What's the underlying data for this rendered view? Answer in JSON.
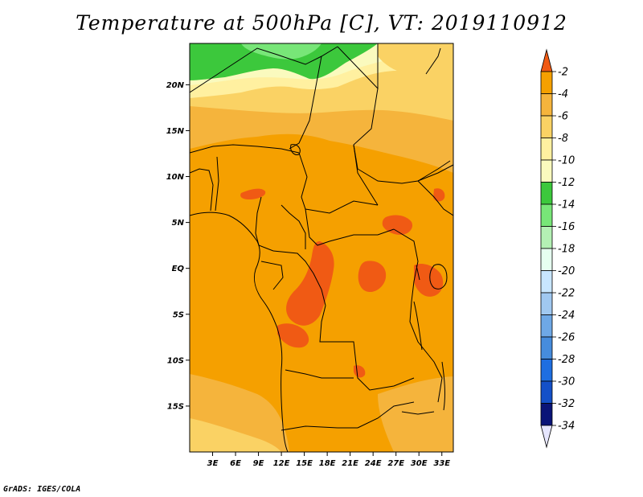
{
  "title": "Temperature at 500hPa [C], VT: 2019110912",
  "credit": "GrADS: IGES/COLA",
  "map": {
    "lon_range": [
      0,
      34.5
    ],
    "lat_range": [
      -20,
      24.5
    ],
    "lat_ticks": [
      {
        "value": 20,
        "label": "20N"
      },
      {
        "value": 15,
        "label": "15N"
      },
      {
        "value": 10,
        "label": "10N"
      },
      {
        "value": 5,
        "label": "5N"
      },
      {
        "value": 0,
        "label": "EQ"
      },
      {
        "value": -5,
        "label": "5S"
      },
      {
        "value": -10,
        "label": "10S"
      },
      {
        "value": -15,
        "label": "15S"
      }
    ],
    "lon_ticks": [
      {
        "value": 3,
        "label": "3E"
      },
      {
        "value": 6,
        "label": "6E"
      },
      {
        "value": 9,
        "label": "9E"
      },
      {
        "value": 12,
        "label": "12E"
      },
      {
        "value": 15,
        "label": "15E"
      },
      {
        "value": 18,
        "label": "18E"
      },
      {
        "value": 21,
        "label": "21E"
      },
      {
        "value": 24,
        "label": "24E"
      },
      {
        "value": 27,
        "label": "27E"
      },
      {
        "value": 30,
        "label": "30E"
      },
      {
        "value": 33,
        "label": "33E"
      }
    ]
  },
  "colorbar": {
    "labels": [
      "-2",
      "-4",
      "-6",
      "-8",
      "-10",
      "-12",
      "-14",
      "-16",
      "-18",
      "-20",
      "-22",
      "-24",
      "-26",
      "-28",
      "-30",
      "-32",
      "-34"
    ],
    "colors_top_to_bottom": [
      "#f05a14",
      "#f5a000",
      "#f5b43c",
      "#fad264",
      "#fff0a0",
      "#fafabe",
      "#3cc83c",
      "#78e678",
      "#b4f0b4",
      "#e6fff0",
      "#c8e6ff",
      "#a0c8f0",
      "#6ea8e6",
      "#468cdc",
      "#1e6ee1",
      "#1450c8",
      "#0a1478",
      "#e6e6ff"
    ]
  }
}
